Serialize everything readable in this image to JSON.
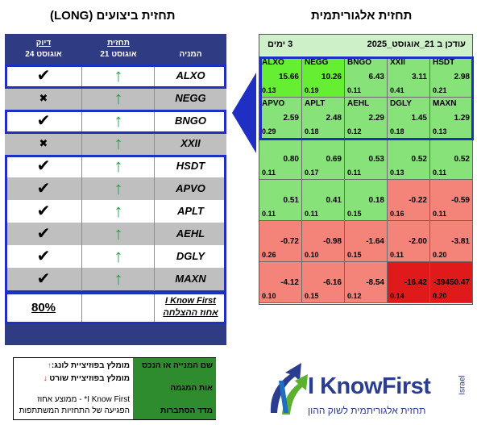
{
  "titles": {
    "left": "תחזית ביצועים (LONG)",
    "right": "תחזית אלגוריתמית"
  },
  "perf_table": {
    "header": {
      "accuracy": "דיוק",
      "accuracy_date": "24 אוגוסט",
      "forecast": "תחזית",
      "forecast_date": "21 אוגוסט",
      "stock": "המניה"
    },
    "rows": [
      {
        "ticker": "ALXO",
        "arrow": "↑",
        "mark": "✔",
        "ok": true
      },
      {
        "ticker": "NEGG",
        "arrow": "↑",
        "mark": "✖",
        "ok": false
      },
      {
        "ticker": "BNGO",
        "arrow": "↑",
        "mark": "✔",
        "ok": true
      },
      {
        "ticker": "XXII",
        "arrow": "↑",
        "mark": "✖",
        "ok": false
      },
      {
        "ticker": "HSDT",
        "arrow": "↑",
        "mark": "✔",
        "ok": true
      },
      {
        "ticker": "APVO",
        "arrow": "↑",
        "mark": "✔",
        "ok": true
      },
      {
        "ticker": "APLT",
        "arrow": "↑",
        "mark": "✔",
        "ok": true
      },
      {
        "ticker": "AEHL",
        "arrow": "↑",
        "mark": "✔",
        "ok": true
      },
      {
        "ticker": "DGLY",
        "arrow": "↑",
        "mark": "✔",
        "ok": true
      },
      {
        "ticker": "MAXN",
        "arrow": "↑",
        "mark": "✔",
        "ok": true
      }
    ],
    "summary": {
      "percent": "80%",
      "label_line1": "I Know First",
      "label_line2": "אחוז ההצלחה"
    }
  },
  "heatmap": {
    "header": {
      "days": "3 ימים",
      "updated": "עודכן ב 21_אוגוסט_2025"
    },
    "colors": {
      "bright_green": "#66ee33",
      "green": "#88e27a",
      "salmon": "#f4837a",
      "red": "#e01a1a"
    },
    "cells": [
      {
        "ticker": "ALXO",
        "value": "15.66",
        "prob": "0.13",
        "color": "#66ee33"
      },
      {
        "ticker": "NEGG",
        "value": "10.26",
        "prob": "0.19",
        "color": "#66ee33"
      },
      {
        "ticker": "BNGO",
        "value": "6.43",
        "prob": "0.11",
        "color": "#88e27a"
      },
      {
        "ticker": "XXII",
        "value": "3.11",
        "prob": "0.41",
        "color": "#88e27a"
      },
      {
        "ticker": "HSDT",
        "value": "2.98",
        "prob": "0.21",
        "color": "#88e27a"
      },
      {
        "ticker": "APVO",
        "value": "2.59",
        "prob": "0.29",
        "color": "#88e27a"
      },
      {
        "ticker": "APLT",
        "value": "2.48",
        "prob": "0.18",
        "color": "#88e27a"
      },
      {
        "ticker": "AEHL",
        "value": "2.29",
        "prob": "0.12",
        "color": "#88e27a"
      },
      {
        "ticker": "DGLY",
        "value": "1.45",
        "prob": "0.18",
        "color": "#88e27a"
      },
      {
        "ticker": "MAXN",
        "value": "1.29",
        "prob": "0.13",
        "color": "#88e27a"
      },
      {
        "ticker": "",
        "value": "0.80",
        "prob": "0.11",
        "color": "#88e27a"
      },
      {
        "ticker": "",
        "value": "0.69",
        "prob": "0.17",
        "color": "#88e27a"
      },
      {
        "ticker": "",
        "value": "0.53",
        "prob": "0.11",
        "color": "#88e27a"
      },
      {
        "ticker": "",
        "value": "0.52",
        "prob": "0.13",
        "color": "#88e27a"
      },
      {
        "ticker": "",
        "value": "0.52",
        "prob": "0.11",
        "color": "#88e27a"
      },
      {
        "ticker": "",
        "value": "0.51",
        "prob": "0.11",
        "color": "#88e27a"
      },
      {
        "ticker": "",
        "value": "0.41",
        "prob": "0.11",
        "color": "#88e27a"
      },
      {
        "ticker": "",
        "value": "0.18",
        "prob": "0.15",
        "color": "#88e27a"
      },
      {
        "ticker": "",
        "value": "-0.22",
        "prob": "0.16",
        "color": "#f4837a"
      },
      {
        "ticker": "",
        "value": "-0.59",
        "prob": "0.11",
        "color": "#f4837a"
      },
      {
        "ticker": "",
        "value": "-0.72",
        "prob": "0.26",
        "color": "#f4837a"
      },
      {
        "ticker": "",
        "value": "-0.98",
        "prob": "0.10",
        "color": "#f4837a"
      },
      {
        "ticker": "",
        "value": "-1.64",
        "prob": "0.15",
        "color": "#f4837a"
      },
      {
        "ticker": "",
        "value": "-2.00",
        "prob": "0.11",
        "color": "#f4837a"
      },
      {
        "ticker": "",
        "value": "-3.81",
        "prob": "0.20",
        "color": "#f4837a"
      },
      {
        "ticker": "",
        "value": "-4.12",
        "prob": "0.10",
        "color": "#f4837a"
      },
      {
        "ticker": "",
        "value": "-6.16",
        "prob": "0.15",
        "color": "#f4837a"
      },
      {
        "ticker": "",
        "value": "-8.54",
        "prob": "0.12",
        "color": "#f4837a"
      },
      {
        "ticker": "",
        "value": "-16.42",
        "prob": "0.14",
        "color": "#e01a1a"
      },
      {
        "ticker": "",
        "value": "-39450.47",
        "prob": "0.20",
        "color": "#e01a1a"
      }
    ]
  },
  "legend": {
    "long": "מומלץ בפוזיציית לונג:",
    "long_arrow": "↑",
    "short": "מומלץ בפוזיציית שורט",
    "short_arrow": "↓",
    "note_line1": "I Know First* - ממוצע אחוז",
    "note_line2": "הפגיעה של התחזיות המשתתפות",
    "right_1": "שם המנייה או הנכס",
    "right_2": "אות המגמה",
    "right_3": "מדד הסתברות"
  },
  "logo": {
    "name": "I KnowFirst",
    "country": "Israel",
    "tagline": "תחזית אלגוריתמית לשוק ההון"
  }
}
